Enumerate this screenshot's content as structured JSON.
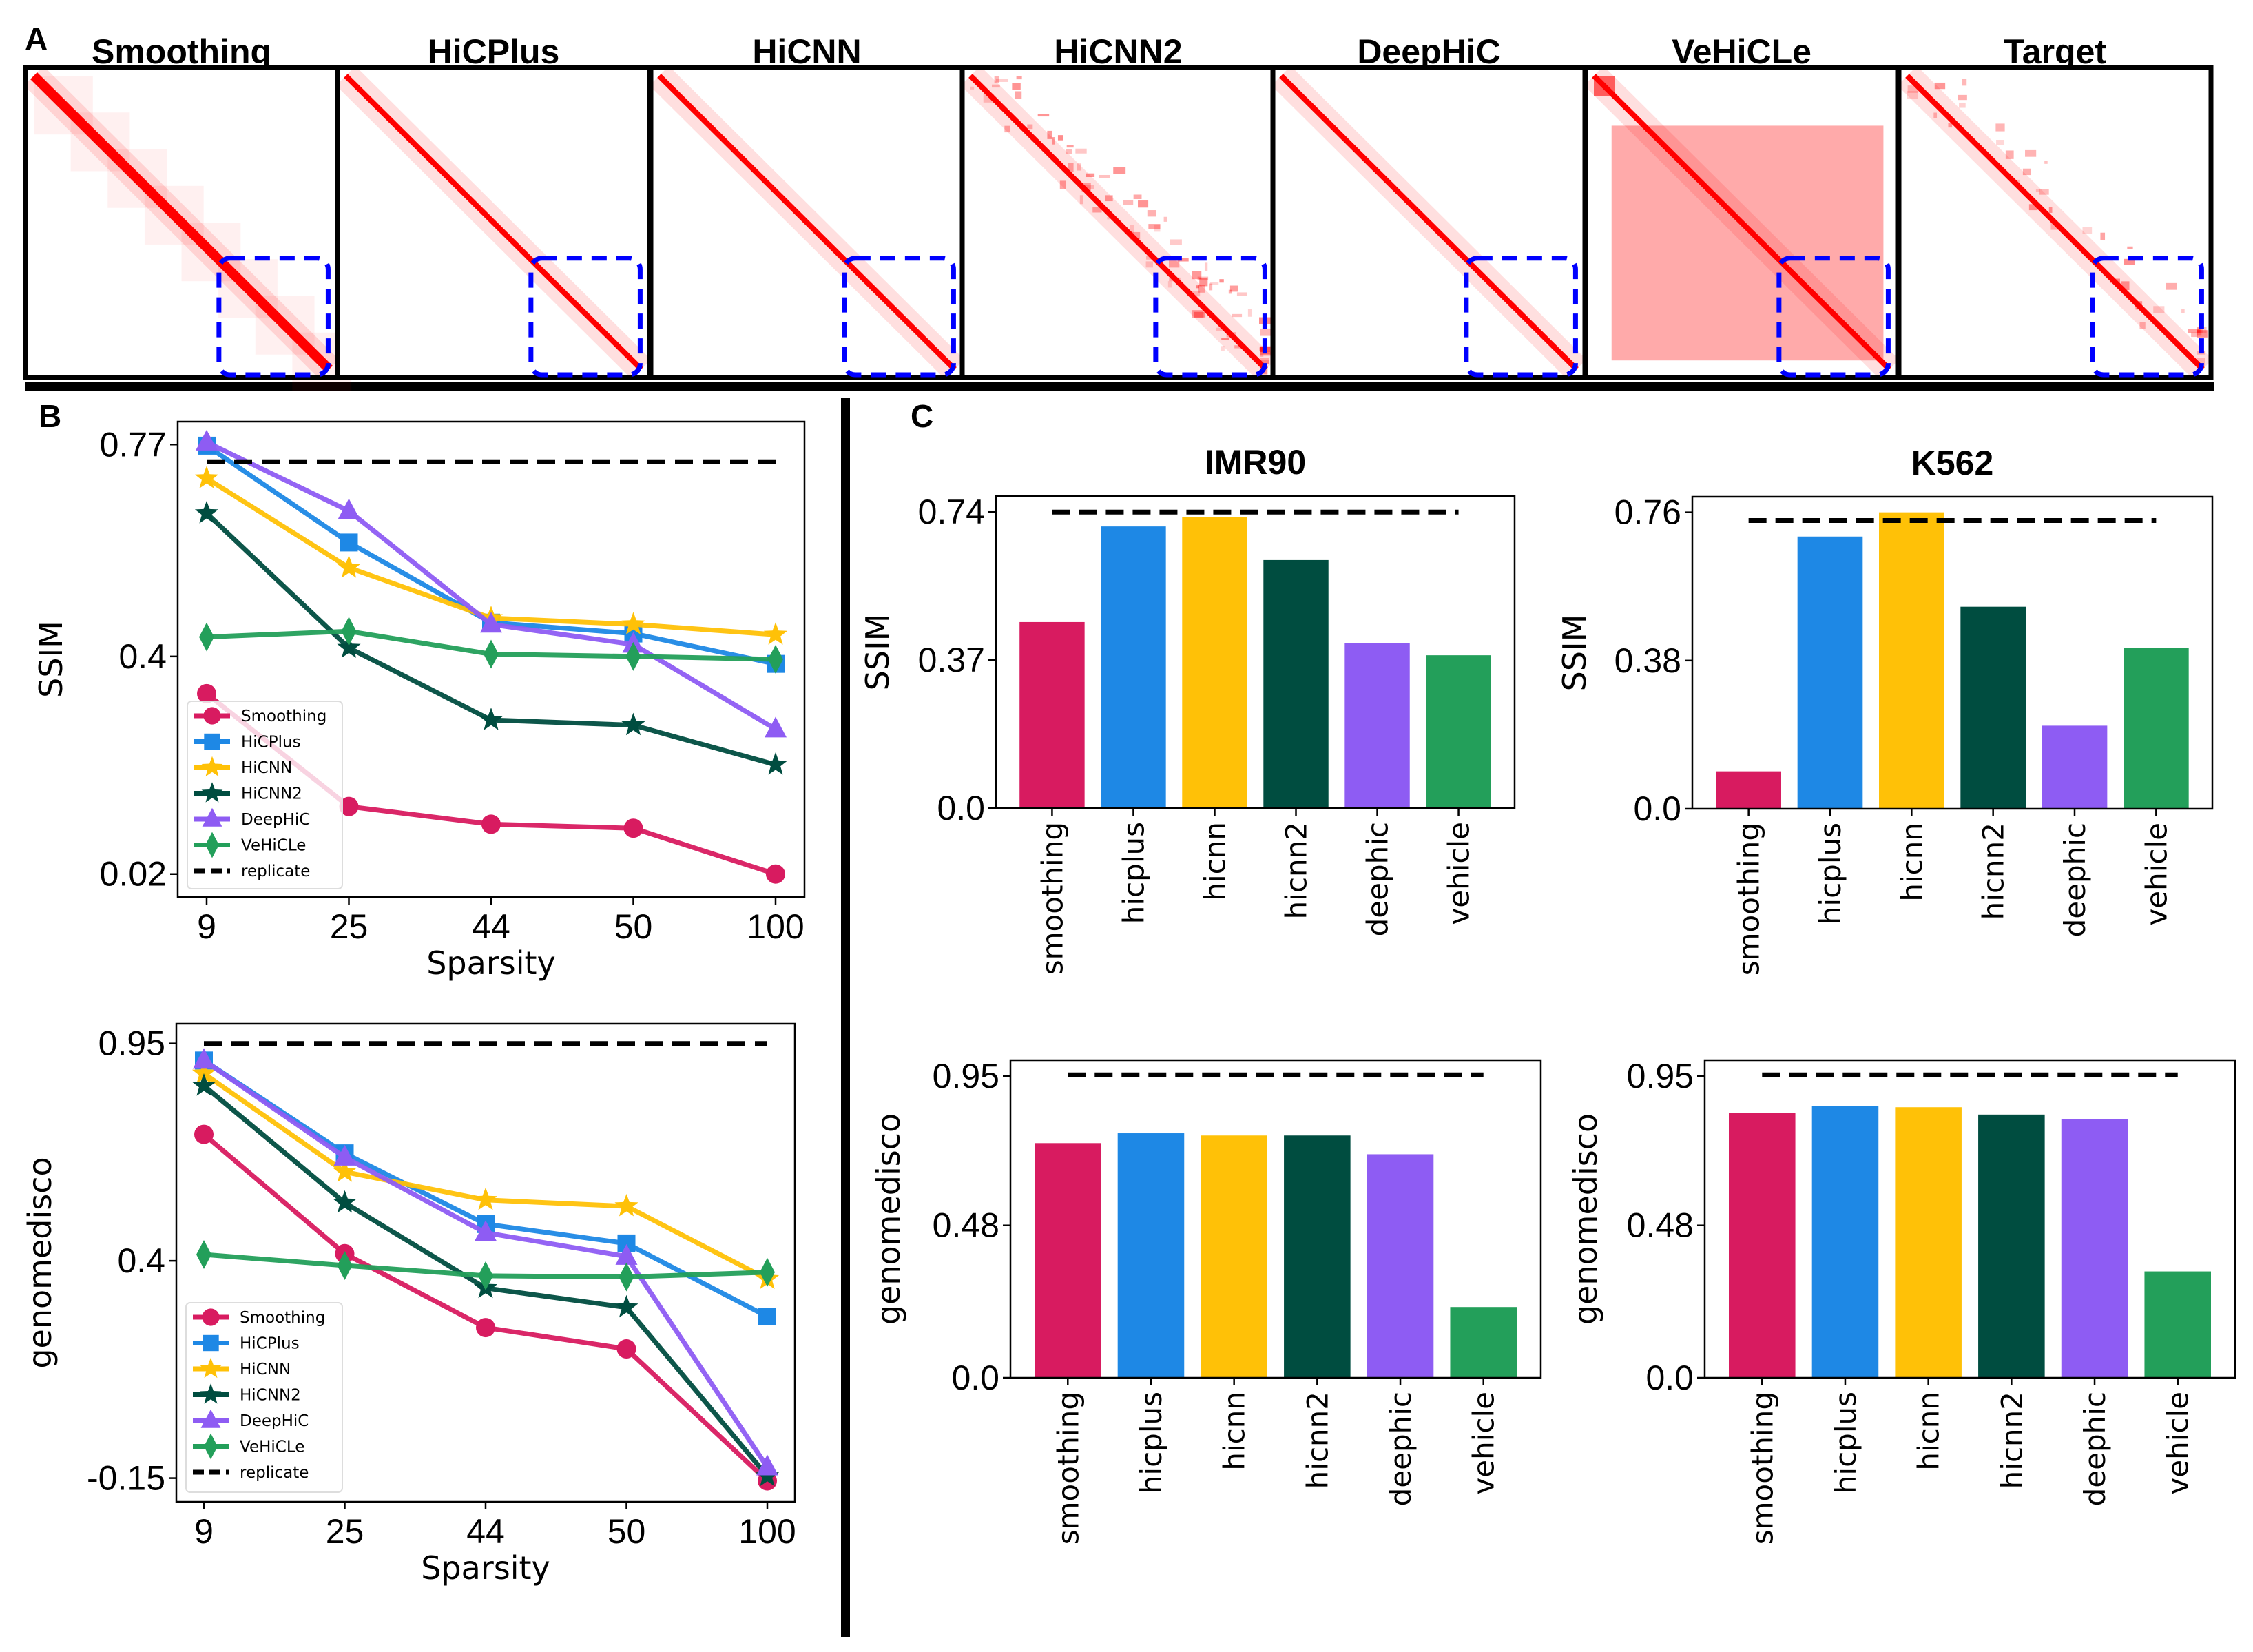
{
  "panel_labels": {
    "a": "A",
    "b": "B",
    "c": "C"
  },
  "colors": {
    "smoothing": "#D81B60",
    "hicplus": "#1E88E5",
    "hicnn": "#FFC107",
    "hicnn2": "#004D40",
    "deephic": "#8E5CF3",
    "vehicle": "#239F5A",
    "replicate": "#000000",
    "highlight_box": "#0000FF",
    "heatmap": "#FF0000"
  },
  "heatmaps": {
    "titles": [
      "Smoothing",
      "HiCPlus",
      "HiCNN",
      "HiCNN2",
      "DeepHiC",
      "VeHiCLe",
      "Target"
    ]
  },
  "chart_data": [
    {
      "type": "line",
      "xlabel": "Sparsity",
      "ylabel": "SSIM",
      "categories": [
        "9",
        "25",
        "44",
        "50",
        "100"
      ],
      "yticks": [
        "0.02",
        "0.4",
        "0.77"
      ],
      "ylim": [
        -0.02,
        0.81
      ],
      "legend": "lower-left",
      "grid": false,
      "series": [
        {
          "name": "Smoothing",
          "key": "smoothing",
          "marker": "circle",
          "values": [
            0.335,
            0.138,
            0.107,
            0.1,
            0.02
          ]
        },
        {
          "name": "HiCPlus",
          "key": "hicplus",
          "marker": "square",
          "values": [
            0.768,
            0.599,
            0.459,
            0.44,
            0.387
          ]
        },
        {
          "name": "HiCNN",
          "key": "hicnn",
          "marker": "star",
          "values": [
            0.711,
            0.555,
            0.467,
            0.456,
            0.438
          ]
        },
        {
          "name": "HiCNN2",
          "key": "hicnn2",
          "marker": "star",
          "values": [
            0.65,
            0.415,
            0.289,
            0.28,
            0.211
          ]
        },
        {
          "name": "DeepHiC",
          "key": "deephic",
          "marker": "triangle",
          "values": [
            0.774,
            0.654,
            0.456,
            0.421,
            0.273
          ]
        },
        {
          "name": "VeHiCLe",
          "key": "vehicle",
          "marker": "diamond",
          "values": [
            0.434,
            0.444,
            0.404,
            0.4,
            0.395
          ]
        },
        {
          "name": "replicate",
          "key": "replicate",
          "marker": "none",
          "dashed": true,
          "values": [
            0.74,
            0.74,
            0.74,
            0.74,
            0.74
          ]
        }
      ]
    },
    {
      "type": "line",
      "xlabel": "Sparsity",
      "ylabel": "genomedisco",
      "categories": [
        "9",
        "25",
        "44",
        "50",
        "100"
      ],
      "yticks": [
        "-0.15",
        "0.4",
        "0.95"
      ],
      "ylim": [
        -0.21,
        1.0
      ],
      "legend": "lower-left",
      "grid": false,
      "series": [
        {
          "name": "Smoothing",
          "key": "smoothing",
          "marker": "circle",
          "values": [
            0.72,
            0.418,
            0.231,
            0.177,
            -0.157
          ]
        },
        {
          "name": "HiCPlus",
          "key": "hicplus",
          "marker": "square",
          "values": [
            0.907,
            0.672,
            0.493,
            0.444,
            0.259
          ]
        },
        {
          "name": "HiCNN",
          "key": "hicnn",
          "marker": "star",
          "values": [
            0.874,
            0.625,
            0.554,
            0.538,
            0.354
          ]
        },
        {
          "name": "HiCNN2",
          "key": "hicnn2",
          "marker": "star",
          "values": [
            0.843,
            0.547,
            0.331,
            0.282,
            -0.145
          ]
        },
        {
          "name": "DeepHiC",
          "key": "deephic",
          "marker": "triangle",
          "values": [
            0.907,
            0.662,
            0.471,
            0.411,
            -0.122
          ]
        },
        {
          "name": "VeHiCLe",
          "key": "vehicle",
          "marker": "diamond",
          "values": [
            0.416,
            0.388,
            0.362,
            0.359,
            0.371
          ]
        },
        {
          "name": "replicate",
          "key": "replicate",
          "marker": "none",
          "dashed": true,
          "values": [
            0.95,
            0.95,
            0.95,
            0.95,
            0.95
          ]
        }
      ]
    },
    {
      "type": "bar",
      "title": "IMR90",
      "ylabel": "SSIM",
      "categories": [
        "smoothing",
        "hicplus",
        "hicnn",
        "hicnn2",
        "deephic",
        "vehicle"
      ],
      "keys": [
        "smoothing",
        "hicplus",
        "hicnn",
        "hicnn2",
        "deephic",
        "vehicle"
      ],
      "values": [
        0.465,
        0.704,
        0.727,
        0.62,
        0.413,
        0.382
      ],
      "replicate": 0.74,
      "yticks": [
        "0.0",
        "0.37",
        "0.74"
      ],
      "ylim": [
        0,
        0.78
      ]
    },
    {
      "type": "bar",
      "title": "K562",
      "ylabel": "SSIM",
      "categories": [
        "smoothing",
        "hicplus",
        "hicnn",
        "hicnn2",
        "deephic",
        "vehicle"
      ],
      "keys": [
        "smoothing",
        "hicplus",
        "hicnn",
        "hicnn2",
        "deephic",
        "vehicle"
      ],
      "values": [
        0.096,
        0.698,
        0.76,
        0.518,
        0.213,
        0.412
      ],
      "replicate": 0.739,
      "yticks": [
        "0.0",
        "0.38",
        "0.76"
      ],
      "ylim": [
        0,
        0.8
      ]
    },
    {
      "type": "bar",
      "title": "",
      "ylabel": "genomedisco",
      "categories": [
        "smoothing",
        "hicplus",
        "hicnn",
        "hicnn2",
        "deephic",
        "vehicle"
      ],
      "keys": [
        "smoothing",
        "hicplus",
        "hicnn",
        "hicnn2",
        "deephic",
        "vehicle"
      ],
      "values": [
        0.739,
        0.77,
        0.763,
        0.763,
        0.704,
        0.223
      ],
      "replicate": 0.954,
      "yticks": [
        "0.0",
        "0.48",
        "0.95"
      ],
      "ylim": [
        0,
        1.0
      ]
    },
    {
      "type": "bar",
      "title": "",
      "ylabel": "genomedisco",
      "categories": [
        "smoothing",
        "hicplus",
        "hicnn",
        "hicnn2",
        "deephic",
        "vehicle"
      ],
      "keys": [
        "smoothing",
        "hicplus",
        "hicnn",
        "hicnn2",
        "deephic",
        "vehicle"
      ],
      "values": [
        0.835,
        0.855,
        0.852,
        0.829,
        0.814,
        0.335
      ],
      "replicate": 0.954,
      "yticks": [
        "0.0",
        "0.48",
        "0.95"
      ],
      "ylim": [
        0,
        1.0
      ]
    }
  ]
}
